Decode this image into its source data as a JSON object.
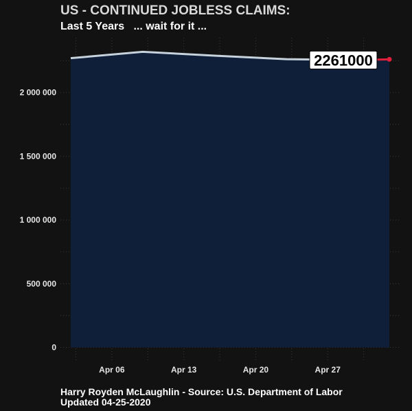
{
  "header": {
    "title": "US - CONTINUED JOBLESS CLAIMS:",
    "subtitle": "Last 5 Years   ... wait for it ..."
  },
  "footer": {
    "source": "Harry Royden McLaughlin - Source: U.S. Department of Labor",
    "updated": "Updated 04-25-2020"
  },
  "colors": {
    "background": "#121212",
    "area_fill": "#0f1f3a",
    "line": "#c7d3dc",
    "highlight": "#e0203a",
    "grid": "#3a3a3a"
  },
  "chart_data": {
    "type": "area",
    "title": "US - CONTINUED JOBLESS CLAIMS:",
    "subtitle": "Last 5 Years   ... wait for it ...",
    "xlabel": "",
    "ylabel": "",
    "x": [
      "2020-04-02",
      "2020-04-09",
      "2020-04-16",
      "2020-04-23",
      "2020-04-30",
      "2020-05-03"
    ],
    "values": [
      2270000,
      2320000,
      2290000,
      2262000,
      2256000,
      2261000
    ],
    "x_ticks": [
      {
        "date": "2020-04-06",
        "label": "Apr 06"
      },
      {
        "date": "2020-04-13",
        "label": "Apr 13"
      },
      {
        "date": "2020-04-20",
        "label": "Apr 20"
      },
      {
        "date": "2020-04-27",
        "label": "Apr 27"
      }
    ],
    "y_ticks": [
      {
        "value": 0,
        "label": "0"
      },
      {
        "value": 500000,
        "label": "500 000"
      },
      {
        "value": 1000000,
        "label": "1 000 000"
      },
      {
        "value": 1500000,
        "label": "1 500 000"
      },
      {
        "value": 2000000,
        "label": "2 000 000"
      }
    ],
    "xlim": [
      "2020-04-01",
      "2020-05-04"
    ],
    "ylim": [
      -100000,
      2430000
    ],
    "last_value_label": "2261000",
    "grid": true
  }
}
